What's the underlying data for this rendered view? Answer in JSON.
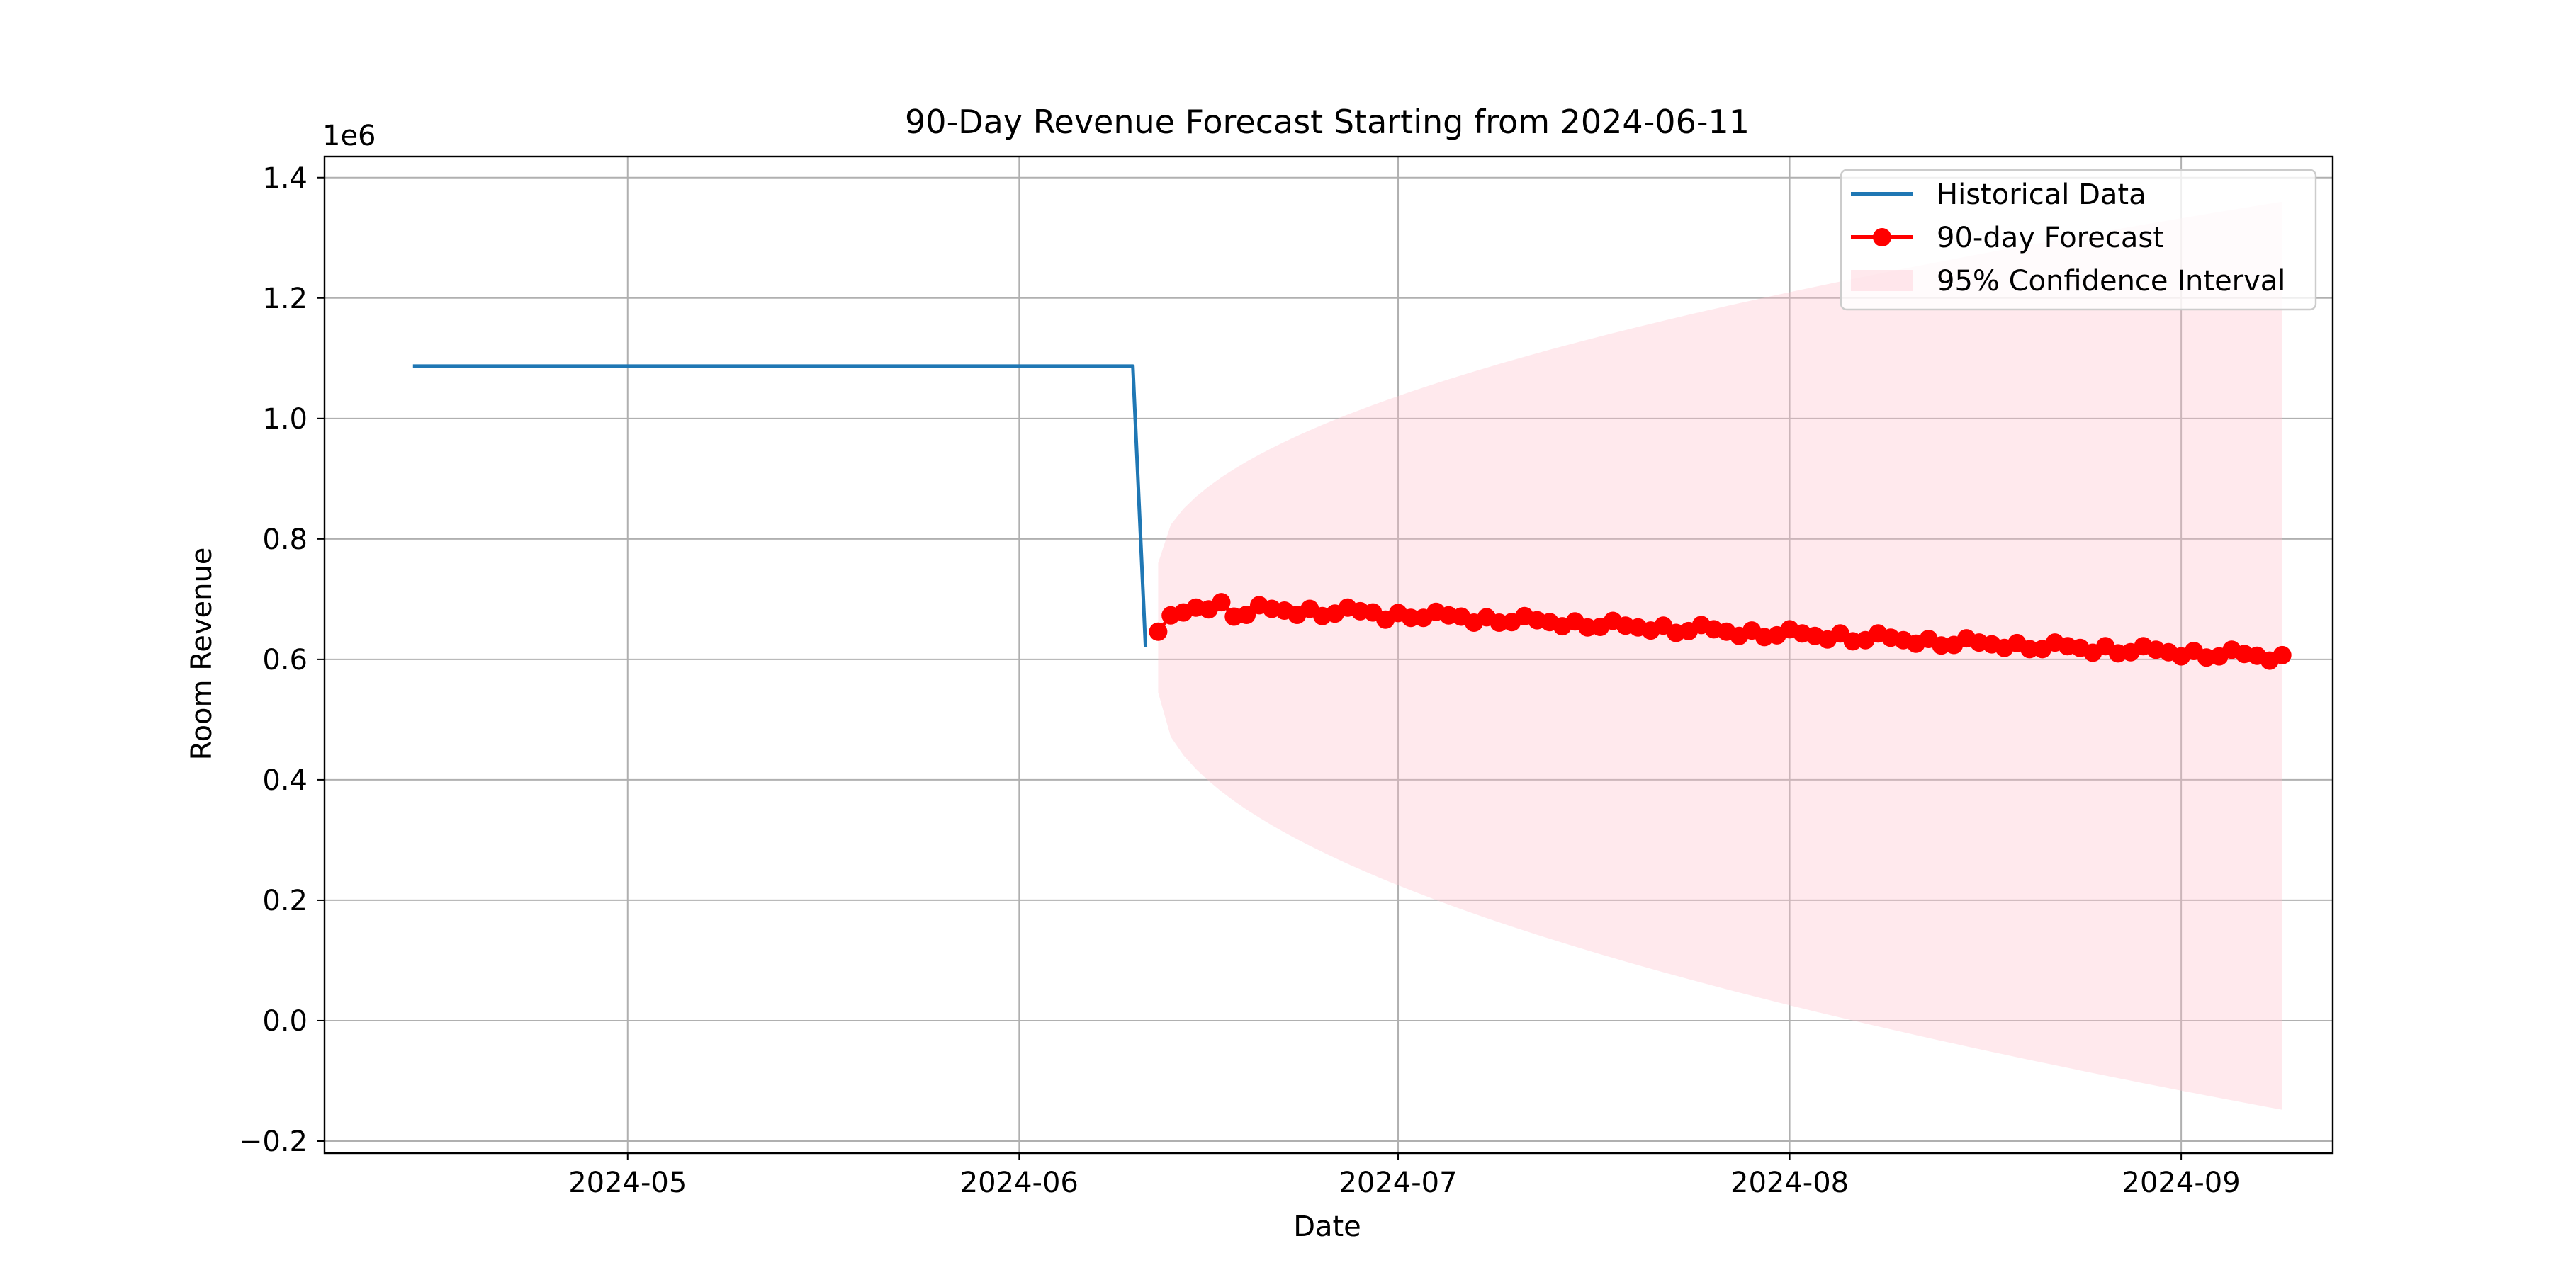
{
  "chart_data": {
    "type": "line",
    "title": "90-Day Revenue Forecast Starting from 2024-06-11",
    "xlabel": "Date",
    "ylabel": "Room Revenue",
    "y_offset_label": "1e6",
    "xlim": [
      "2024-04-07",
      "2024-09-13"
    ],
    "ylim": [
      -0.22,
      1.435
    ],
    "y_multiplier": 1000000,
    "x_ticks": [
      "2024-05-01",
      "2024-06-01",
      "2024-07-01",
      "2024-08-01",
      "2024-09-01"
    ],
    "x_tick_labels": [
      "2024-05",
      "2024-06",
      "2024-07",
      "2024-08",
      "2024-09"
    ],
    "y_ticks": [
      -0.2,
      0.0,
      0.2,
      0.4,
      0.6,
      0.8,
      1.0,
      1.2,
      1.4
    ],
    "y_tick_labels": [
      "−0.2",
      "0.0",
      "0.2",
      "0.4",
      "0.6",
      "0.8",
      "1.0",
      "1.2",
      "1.4"
    ],
    "grid": true,
    "legend_position": "top-right",
    "colors": {
      "historical": "#1f77b4",
      "forecast": "#ff0000",
      "confidence": "#ffc0cb"
    },
    "series": [
      {
        "name": "Historical Data",
        "kind": "line",
        "x": [
          "2024-04-14",
          "2024-06-10",
          "2024-06-11"
        ],
        "y": [
          1.087,
          1.087,
          0.62
        ]
      },
      {
        "name": "90-day Forecast",
        "kind": "line-marker",
        "start": "2024-06-12",
        "values": [
          0.646,
          0.673,
          0.678,
          0.686,
          0.683,
          0.695,
          0.671,
          0.674,
          0.69,
          0.684,
          0.681,
          0.674,
          0.684,
          0.672,
          0.676,
          0.686,
          0.68,
          0.678,
          0.666,
          0.677,
          0.669,
          0.669,
          0.679,
          0.673,
          0.671,
          0.661,
          0.67,
          0.661,
          0.662,
          0.672,
          0.665,
          0.662,
          0.655,
          0.663,
          0.653,
          0.654,
          0.664,
          0.656,
          0.653,
          0.648,
          0.656,
          0.644,
          0.647,
          0.657,
          0.65,
          0.646,
          0.639,
          0.648,
          0.637,
          0.64,
          0.65,
          0.643,
          0.639,
          0.633,
          0.643,
          0.63,
          0.632,
          0.643,
          0.636,
          0.632,
          0.626,
          0.634,
          0.623,
          0.624,
          0.635,
          0.628,
          0.625,
          0.619,
          0.627,
          0.617,
          0.617,
          0.628,
          0.622,
          0.619,
          0.611,
          0.622,
          0.61,
          0.612,
          0.622,
          0.616,
          0.612,
          0.605,
          0.614,
          0.603,
          0.605,
          0.616,
          0.609,
          0.606,
          0.598,
          0.607
        ]
      },
      {
        "name": "95% Confidence Interval",
        "kind": "band",
        "start": "2024-06-12",
        "end": "2024-09-09",
        "upper_start": 0.76,
        "upper_end": 1.36,
        "lower_start": 0.545,
        "lower_end": -0.148
      }
    ]
  }
}
